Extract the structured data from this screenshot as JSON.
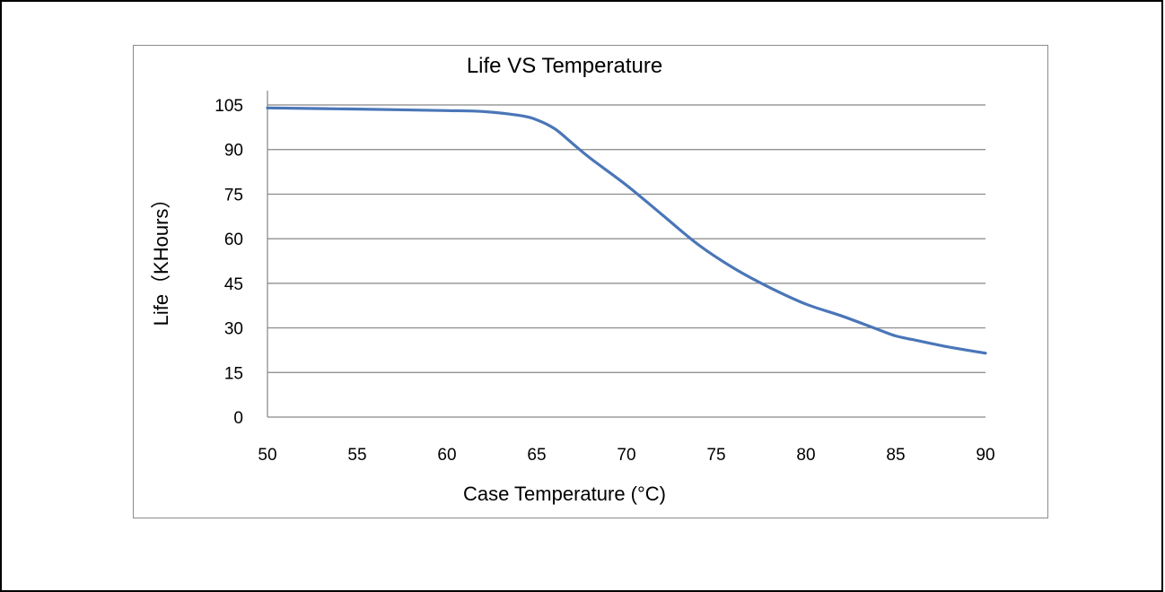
{
  "chart_data": {
    "type": "line",
    "title": "Life VS Temperature",
    "xlabel": "Case Temperature (°C)",
    "ylabel": "Life（KHours）",
    "x_ticks": [
      "50",
      "55",
      "60",
      "65",
      "70",
      "75",
      "80",
      "85",
      "90"
    ],
    "y_ticks": [
      "0",
      "15",
      "30",
      "45",
      "60",
      "75",
      "90",
      "105"
    ],
    "xlim": [
      50,
      90
    ],
    "ylim": [
      0,
      105
    ],
    "grid": "horizontal",
    "legend": "none",
    "series": [
      {
        "color": "#4a76b8",
        "x": [
          50,
          55,
          60,
          62,
          64,
          65,
          66,
          67,
          68,
          70,
          72,
          74,
          76,
          78,
          80,
          82,
          84,
          85,
          86,
          88,
          90
        ],
        "y": [
          104,
          103.6,
          103.1,
          102.8,
          101.5,
          100,
          97,
          92,
          87,
          78,
          68,
          58,
          50,
          43.5,
          38,
          34,
          29.5,
          27.3,
          26,
          23.5,
          21.5
        ]
      }
    ]
  }
}
